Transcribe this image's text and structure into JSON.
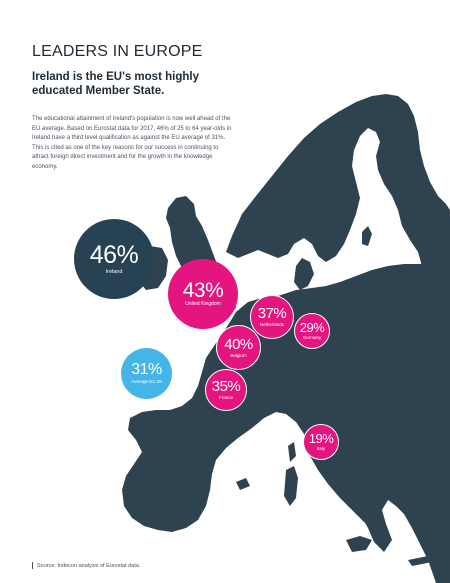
{
  "title": "LEADERS IN EUROPE",
  "subtitle": "Ireland is the EU's most highly educated Member State.",
  "body": "The educational attainment of Ireland's population is now well ahead of the EU average. Based on Eurostat data for 2017, 46% of 25 to 64 year-olds in Ireland have a third level qualification as against the EU average of 31%. This is cited as one of the key reasons for our success in continuing to attract foreign direct investment and for the growth in the knowledge economy.",
  "footer": "Source: Indecon analysis of Eurostat data.",
  "colors": {
    "land": "#2f4250",
    "ireland_bubble": "#274252",
    "country_bubble": "#e5157f",
    "eu_average_bubble": "#45b5e8",
    "background": "#ffffff"
  },
  "bubbles": [
    {
      "id": "ireland",
      "value": "46%",
      "label": "Ireland",
      "percent": 46
    },
    {
      "id": "uk",
      "value": "43%",
      "label": "United Kingdom",
      "percent": 43
    },
    {
      "id": "netherlands",
      "value": "37%",
      "label": "Netherlands",
      "percent": 37
    },
    {
      "id": "germany",
      "value": "29%",
      "label": "Germany",
      "percent": 29
    },
    {
      "id": "belgium",
      "value": "40%",
      "label": "Belgium",
      "percent": 40
    },
    {
      "id": "eu_average",
      "value": "31%",
      "label": "Average EU 28",
      "percent": 31
    },
    {
      "id": "france",
      "value": "35%",
      "label": "France",
      "percent": 35
    },
    {
      "id": "italy",
      "value": "19%",
      "label": "Italy",
      "percent": 19
    }
  ]
}
